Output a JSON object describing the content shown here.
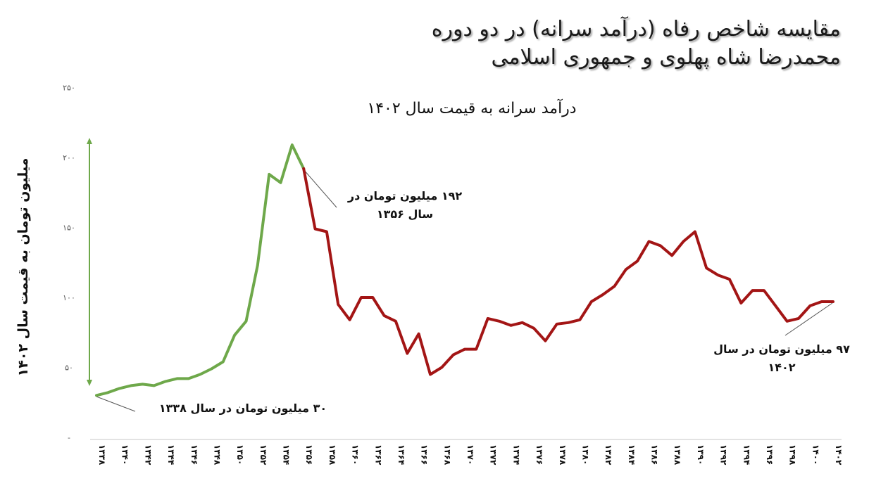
{
  "header": {
    "title_line1": "مقایسه شاخص رفاه (درآمد سرانه) در دو دوره",
    "title_line2": "محمدرضا شاه پهلوی و جمهوری اسلامی"
  },
  "colors": {
    "pahlavi_series": "#6ea84a",
    "islamic_republic_series": "#a31515",
    "arrow": "#6ea84a",
    "leader_line": "#555555",
    "axis": "#e3e3e3"
  },
  "annotations": {
    "start": "۳۰ میلیون تومان در سال ۱۳۳۸",
    "peak_line1": "۱۹۲ میلیون تومان در",
    "peak_line2": "سال ۱۳۵۶",
    "end_line1": "۹۷ میلیون تومان در سال",
    "end_line2": "۱۴۰۲"
  },
  "chart_data": {
    "type": "line",
    "title": "مقایسه شاخص رفاه (درآمد سرانه) در دو دوره محمدرضا شاه پهلوی و جمهوری اسلامی",
    "subtitle": "درآمد سرانه به قیمت سال ۱۴۰۲",
    "xlabel": "",
    "ylabel": "میلیون تومان به قیمت سال ۱۴۰۲",
    "ylim": [
      0,
      250
    ],
    "yticks": [
      0,
      50,
      100,
      150,
      200,
      250
    ],
    "ytick_labels": [
      "-",
      "۵۰",
      "۱۰۰",
      "۱۵۰",
      "۲۰۰",
      "۲۵۰"
    ],
    "grid": false,
    "legend": "none",
    "xtick_labels": [
      "۱۳۳۸",
      "۱۳۴۰",
      "۱۳۴۲",
      "۱۳۴۴",
      "۱۳۴۶",
      "۱۳۴۸",
      "۱۳۵۰",
      "۱۳۵۲",
      "۱۳۵۴",
      "۱۳۵۶",
      "۱۳۵۸",
      "۱۳۶۰",
      "۱۳۶۲",
      "۱۳۶۴",
      "۱۳۶۶",
      "۱۳۶۸",
      "۱۳۷۰",
      "۱۳۷۲",
      "۱۳۷۴",
      "۱۳۷۶",
      "۱۳۷۸",
      "۱۳۸۰",
      "۱۳۸۲",
      "۱۳۸۴",
      "۱۳۸۶",
      "۱۳۸۸",
      "۱۳۹۰",
      "۱۳۹۲",
      "۱۳۹۴",
      "۱۳۹۶",
      "۱۳۹۸",
      "۱۴۰۰",
      "۱۴۰۲"
    ],
    "x": [
      1338,
      1339,
      1340,
      1341,
      1342,
      1343,
      1344,
      1345,
      1346,
      1347,
      1348,
      1349,
      1350,
      1351,
      1352,
      1353,
      1354,
      1355,
      1356,
      1357,
      1358,
      1359,
      1360,
      1361,
      1362,
      1363,
      1364,
      1365,
      1366,
      1367,
      1368,
      1369,
      1370,
      1371,
      1372,
      1373,
      1374,
      1375,
      1376,
      1377,
      1378,
      1379,
      1380,
      1381,
      1382,
      1383,
      1384,
      1385,
      1386,
      1387,
      1388,
      1389,
      1390,
      1391,
      1392,
      1393,
      1394,
      1395,
      1396,
      1397,
      1398,
      1399,
      1400,
      1401,
      1402
    ],
    "series": [
      {
        "name": "دوره محمدرضا شاه پهلوی",
        "color": "#6ea84a",
        "x_start": 1338,
        "x_end": 1356,
        "values": [
          30,
          32,
          35,
          37,
          38,
          37,
          40,
          42,
          42,
          45,
          49,
          54,
          73,
          83,
          123,
          188,
          182,
          209,
          192
        ]
      },
      {
        "name": "دوره جمهوری اسلامی",
        "color": "#a31515",
        "x_start": 1356,
        "x_end": 1402,
        "values": [
          192,
          149,
          147,
          95,
          84,
          100,
          100,
          87,
          83,
          60,
          74,
          45,
          50,
          59,
          63,
          63,
          85,
          83,
          80,
          82,
          78,
          69,
          81,
          82,
          84,
          97,
          102,
          108,
          120,
          126,
          140,
          137,
          130,
          140,
          147,
          121,
          116,
          113,
          96,
          105,
          105,
          94,
          83,
          85,
          94,
          97,
          97
        ]
      }
    ],
    "annotations": [
      {
        "x": 1338,
        "y": 30,
        "text": "۳۰ میلیون تومان در سال ۱۳۳۸"
      },
      {
        "x": 1356,
        "y": 192,
        "text": "۱۹۲ میلیون تومان در سال ۱۳۵۶"
      },
      {
        "x": 1402,
        "y": 97,
        "text": "۹۷ میلیون تومان در سال ۱۴۰۲"
      }
    ],
    "range_arrow": {
      "from": 30,
      "to": 209,
      "x_position": "left of plot",
      "color": "#6ea84a"
    }
  }
}
